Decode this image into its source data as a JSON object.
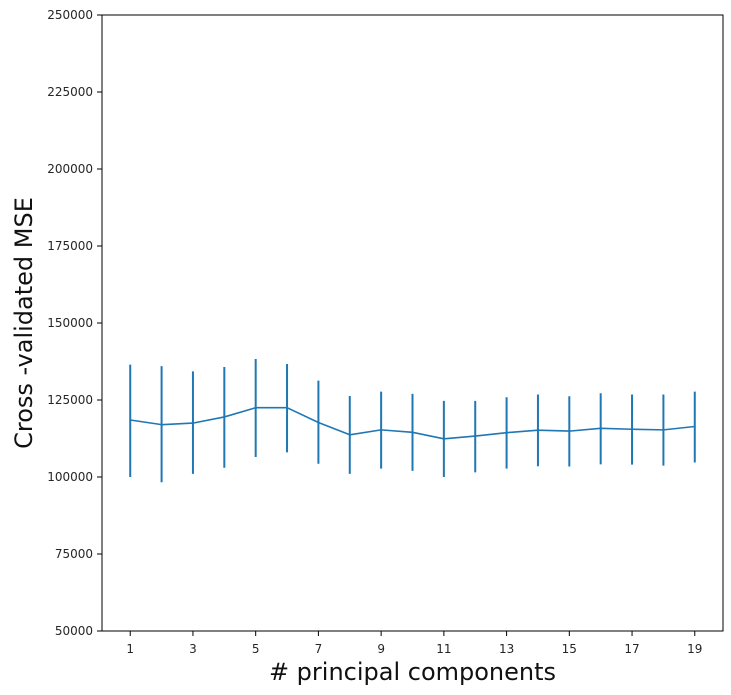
{
  "chart_data": {
    "type": "line",
    "title": "",
    "xlabel": "# principal components",
    "ylabel": "Cross -validated MSE",
    "xlim": [
      0.1,
      19.9
    ],
    "ylim": [
      50000,
      250000
    ],
    "x_ticks": [
      1,
      3,
      5,
      7,
      9,
      11,
      13,
      15,
      17,
      19
    ],
    "x_tick_labels": [
      "1",
      "3",
      "5",
      "7",
      "9",
      "11",
      "13",
      "15",
      "17",
      "19"
    ],
    "y_ticks": [
      50000,
      75000,
      100000,
      125000,
      150000,
      175000,
      200000,
      225000,
      250000
    ],
    "y_tick_labels": [
      "50000",
      "75000",
      "100000",
      "125000",
      "150000",
      "175000",
      "200000",
      "225000",
      "250000"
    ],
    "grid": false,
    "color": "#1f77b4",
    "series": [
      {
        "x": [
          1,
          2,
          3,
          4,
          5,
          6,
          7,
          8,
          9,
          10,
          11,
          12,
          13,
          14,
          15,
          16,
          17,
          18,
          19
        ],
        "values": [
          118500,
          117000,
          117500,
          119500,
          122500,
          122500,
          117700,
          113700,
          115300,
          114500,
          112400,
          113300,
          114400,
          115200,
          114900,
          115800,
          115500,
          115300,
          116400
        ],
        "error_low": [
          100000,
          98300,
          101000,
          103000,
          106500,
          108000,
          104300,
          101000,
          102700,
          102000,
          100000,
          101500,
          102700,
          103500,
          103400,
          104100,
          104000,
          103700,
          104700
        ],
        "error_high": [
          136500,
          136000,
          134300,
          135700,
          138300,
          136700,
          131300,
          126300,
          127700,
          127000,
          124700,
          124700,
          125900,
          126800,
          126200,
          127200,
          126800,
          126800,
          127700
        ]
      }
    ]
  }
}
